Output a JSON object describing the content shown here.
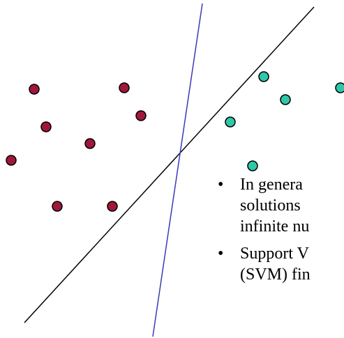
{
  "colors": {
    "class_a_fill": "#a0173a",
    "class_b_fill": "#2ec7a9",
    "point_stroke": "#000000",
    "separator_1": "#000000",
    "separator_2": "#3a3ab8"
  },
  "text": {
    "bullets": [
      {
        "lines": [
          "In genera",
          "solutions",
          "infinite nu"
        ]
      },
      {
        "lines": [
          "Support V",
          "(SVM) fin"
        ]
      }
    ]
  }
}
